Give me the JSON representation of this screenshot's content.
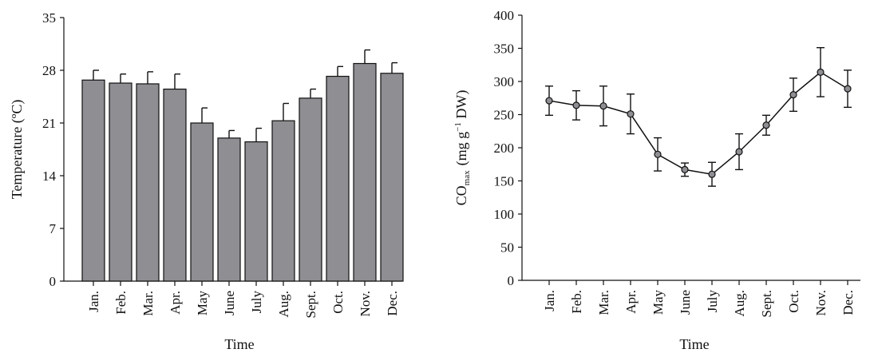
{
  "chart_data": [
    {
      "type": "bar",
      "xlabel": "Time",
      "ylabel": "Temperature (ºC)",
      "ylim": [
        0,
        35
      ],
      "yticks": [
        "0",
        "7",
        "14",
        "21",
        "28",
        "35"
      ],
      "categories": [
        "Jan.",
        "Feb.",
        "Mar.",
        "Apr.",
        "May",
        "June",
        "July",
        "Aug.",
        "Sept.",
        "Oct.",
        "Nov.",
        "Dec."
      ],
      "values": [
        26.7,
        26.3,
        26.2,
        25.5,
        21.0,
        19.0,
        18.5,
        21.3,
        24.3,
        27.2,
        28.9,
        27.6
      ],
      "errors": [
        1.3,
        1.2,
        1.6,
        2.0,
        2.0,
        1.0,
        1.8,
        2.3,
        1.2,
        1.3,
        1.8,
        1.4
      ],
      "bar_color": "#8e8e93",
      "grid": false,
      "legend": "none"
    },
    {
      "type": "line",
      "xlabel": "Time",
      "ylabel_main": "CO",
      "ylabel_sub": "max",
      "ylabel_units_pre": "(mg g",
      "ylabel_sup": "−1",
      "ylabel_units_post": " DW)",
      "ylim": [
        0,
        400
      ],
      "yticks": [
        "0",
        "50",
        "100",
        "150",
        "200",
        "250",
        "300",
        "350",
        "400"
      ],
      "categories": [
        "Jan.",
        "Feb.",
        "Mar.",
        "Apr.",
        "May",
        "June",
        "July",
        "Aug.",
        "Sept.",
        "Oct.",
        "Nov.",
        "Dec."
      ],
      "values": [
        271,
        264,
        263,
        251,
        190,
        167,
        160,
        194,
        234,
        280,
        314,
        289
      ],
      "errors": [
        22,
        22,
        30,
        30,
        25,
        10,
        18,
        27,
        15,
        25,
        37,
        28
      ],
      "marker_color": "#8e8e93",
      "grid": false,
      "legend": "none"
    }
  ]
}
